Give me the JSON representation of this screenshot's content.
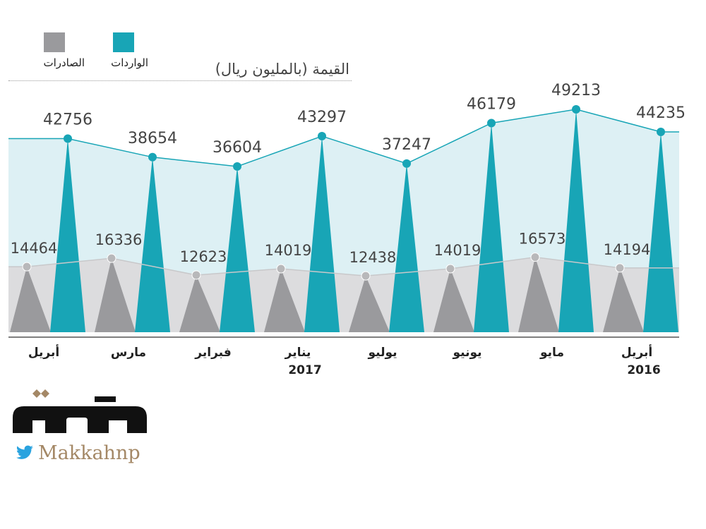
{
  "chart_data": {
    "type": "area",
    "ylabel": "القيمة (بالمليون ريال)",
    "categories": [
      "أبريل",
      "مارس",
      "فبراير",
      "يناير",
      "يوليو",
      "يونيو",
      "مايو",
      "أبريل"
    ],
    "years": [
      "",
      "",
      "",
      "2017",
      "",
      "",
      "",
      "2016"
    ],
    "series": [
      {
        "name": "الواردات",
        "color": "#18a5b6",
        "values": [
          42756,
          38654,
          36604,
          43297,
          37247,
          46179,
          49213,
          44235
        ]
      },
      {
        "name": "الصادرات",
        "color": "#9a9a9d",
        "values": [
          14464,
          16336,
          12623,
          14019,
          12438,
          14019,
          16573,
          14194
        ]
      }
    ],
    "legend_position": "top-left"
  },
  "brand": {
    "logo_text": "مكة",
    "handle": "Makkahnp",
    "twitter_icon": "twitter-bird-icon"
  },
  "colors": {
    "imports_fill": "#ddf0f4",
    "exports_fill": "#dcdcde",
    "dot_gray": "#b8b8ba"
  }
}
